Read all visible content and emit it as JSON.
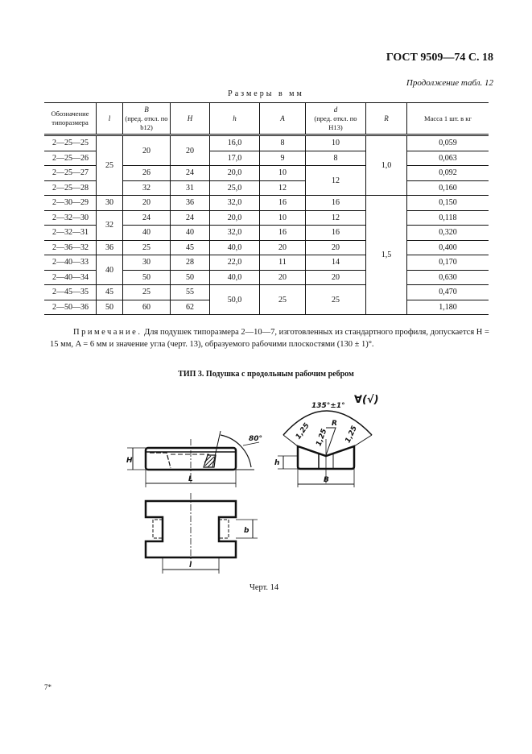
{
  "header": {
    "doc_id": "ГОСТ 9509—74 С. 18"
  },
  "table_continuation": "Продолжение табл. 12",
  "units_label": "Размеры в мм",
  "table": {
    "columns": [
      {
        "name": "Обозначение типоразмера"
      },
      {
        "symbol": "l"
      },
      {
        "symbol": "B",
        "note": "(пред. откл. по b12)"
      },
      {
        "symbol": "H"
      },
      {
        "symbol": "h"
      },
      {
        "symbol": "A"
      },
      {
        "symbol": "d",
        "note": "(пред. откл. по H13)"
      },
      {
        "symbol": "R"
      },
      {
        "name": "Масса 1 шт. в кг"
      }
    ],
    "rows": [
      [
        "2—25—25",
        "25",
        "20",
        "20",
        "16,0",
        "8",
        "10",
        "1,0",
        "0,059"
      ],
      [
        "2—25—26",
        null,
        null,
        null,
        "17,0",
        "9",
        "8",
        null,
        "0,063"
      ],
      [
        "2—25—27",
        null,
        "26",
        "24",
        "20,0",
        "10",
        "12",
        null,
        "0,092"
      ],
      [
        "2—25—28",
        null,
        "32",
        "31",
        "25,0",
        "12",
        null,
        null,
        "0,160"
      ],
      [
        "2—30—29",
        "30",
        "20",
        "36",
        "32,0",
        "16",
        "16",
        "1,5",
        "0,150"
      ],
      [
        "2—32—30",
        "32",
        "24",
        "24",
        "20,0",
        "10",
        "12",
        null,
        "0,118"
      ],
      [
        "2—32—31",
        null,
        "40",
        "40",
        "32,0",
        "16",
        "16",
        null,
        "0,320"
      ],
      [
        "2—36—32",
        "36",
        "25",
        "45",
        "40,0",
        "20",
        "20",
        null,
        "0,400"
      ],
      [
        "2—40—33",
        "40",
        "30",
        "28",
        "22,0",
        "11",
        "14",
        null,
        "0,170"
      ],
      [
        "2—40—34",
        null,
        "50",
        "50",
        "40,0",
        "20",
        "20",
        null,
        "0,630"
      ],
      [
        "2—45—35",
        "45",
        "25",
        "55",
        "50,0",
        "25",
        "25",
        null,
        "0,470"
      ],
      [
        "2—50—36",
        "50",
        "60",
        "62",
        null,
        null,
        null,
        null,
        "1,180"
      ]
    ]
  },
  "note": {
    "label": "Примечание.",
    "text": " Для подушек типоразмера 2—10—7, изготовленных из стандартного профиля, допускается H = 15 мм, A = 6 мм и значение угла (черт. 13), образуемого рабочими плоскостями (130 ± 1)°."
  },
  "type_title": "ТИП 3. Подушка с продольным рабочим ребром",
  "drawing": {
    "angle_label": "80°",
    "notch_angle_label": "135°±1°",
    "roughness_symbol": "∀(√)",
    "dims": {
      "H": "H",
      "L": "L",
      "h": "h",
      "B": "B",
      "R": "R",
      "chamfer": "1,25",
      "l": "l",
      "b": "b"
    }
  },
  "caption": "Черт. 14",
  "page_mark": "7*"
}
